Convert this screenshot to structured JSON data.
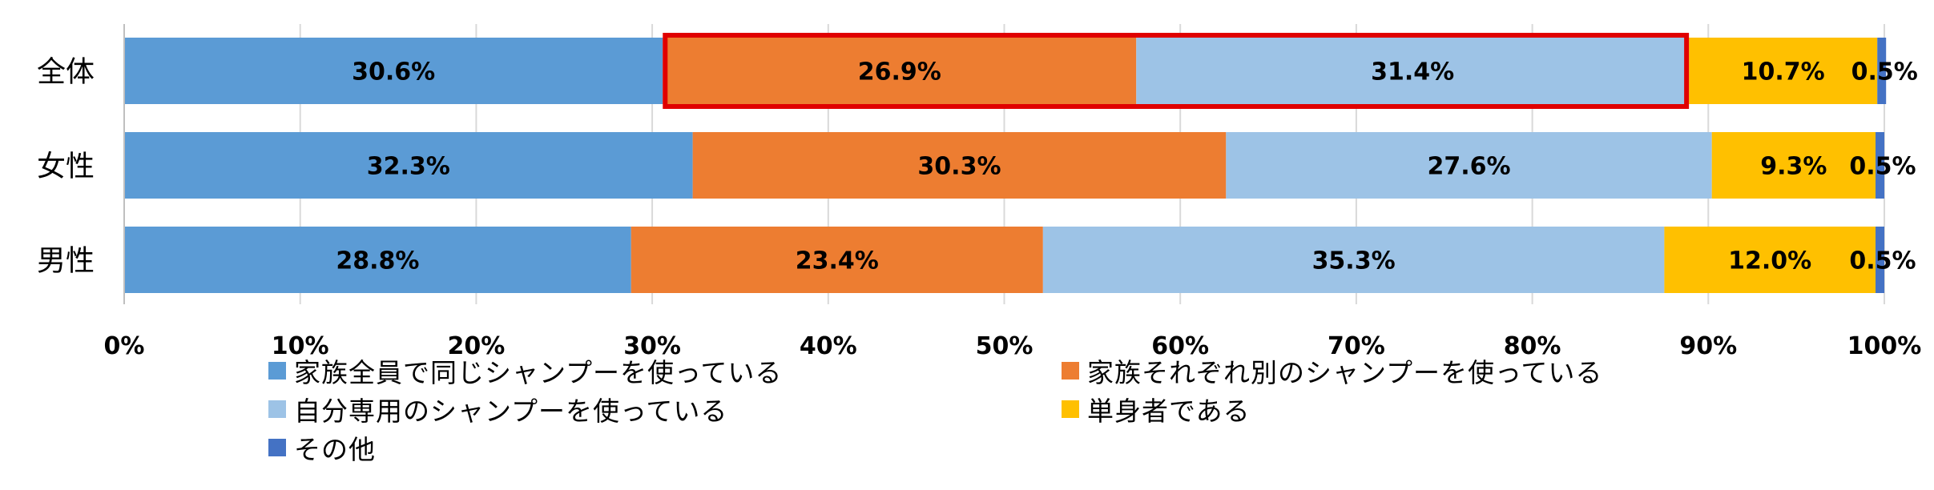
{
  "chart_data": {
    "type": "bar",
    "orientation": "horizontal",
    "stacked": "percent",
    "title": "",
    "xlabel": "",
    "ylabel": "",
    "xlim": [
      0,
      100
    ],
    "categories": [
      "全体",
      "女性",
      "男性"
    ],
    "x_ticks": [
      "0%",
      "10%",
      "20%",
      "30%",
      "40%",
      "50%",
      "60%",
      "70%",
      "80%",
      "90%",
      "100%"
    ],
    "grid": "vertical",
    "legend": "bottom",
    "series": [
      {
        "name": "家族全員で同じシャンプーを使っている",
        "color": "#5B9BD5",
        "values": [
          30.6,
          32.3,
          28.8
        ],
        "labels": [
          "30.6%",
          "32.3%",
          "28.8%"
        ]
      },
      {
        "name": "家族それぞれ別のシャンプーを使っている",
        "color": "#ED7D31",
        "values": [
          26.9,
          30.3,
          23.4
        ],
        "labels": [
          "26.9%",
          "30.3%",
          "23.4%"
        ]
      },
      {
        "name": "自分専用のシャンプーを使っている",
        "color": "#9DC3E6",
        "values": [
          31.4,
          27.6,
          35.3
        ],
        "labels": [
          "31.4%",
          "27.6%",
          "35.3%"
        ]
      },
      {
        "name": "単身者である",
        "color": "#FFC000",
        "values": [
          10.7,
          9.3,
          12.0
        ],
        "labels": [
          "10.7%",
          "9.3%",
          "12.0%"
        ]
      },
      {
        "name": "その他",
        "color": "#4472C4",
        "values": [
          0.5,
          0.5,
          0.5
        ],
        "labels": [
          "0.5%",
          "0.5%",
          "0.5%"
        ]
      }
    ],
    "highlight": {
      "category": "全体",
      "series": [
        "家族それぞれ別のシャンプーを使っている",
        "自分専用のシャンプーを使っている"
      ],
      "color": "#E00000"
    }
  }
}
